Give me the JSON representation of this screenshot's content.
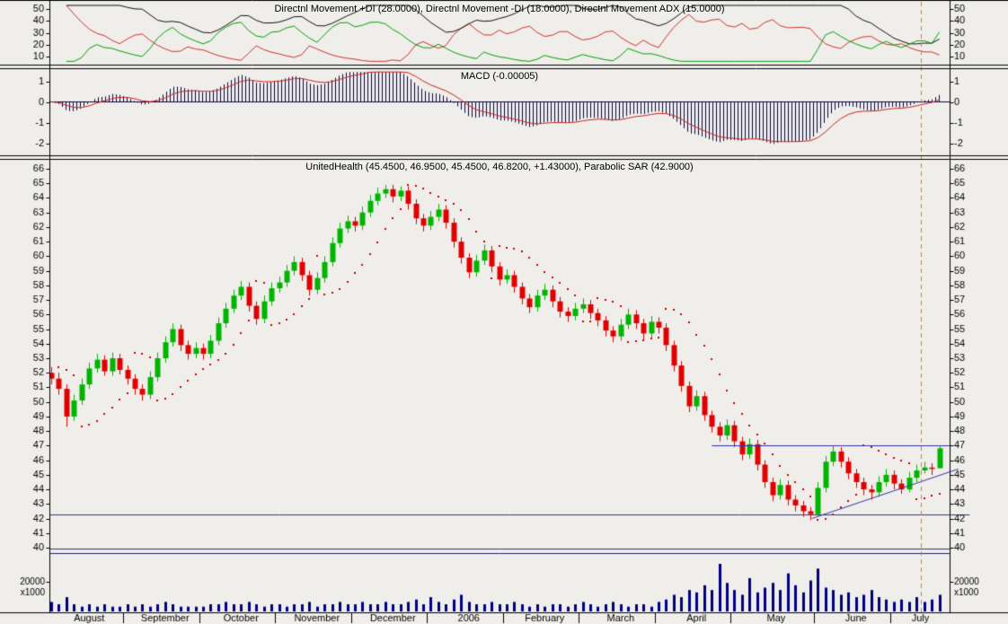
{
  "colors": {
    "background": "#efeeea",
    "frame": "#000000",
    "text": "#000000",
    "up_candle": "#00b400",
    "down_candle": "#e00000",
    "plus_di": "#00a000",
    "minus_di": "#d03030",
    "adx": "#101010",
    "macd_histogram": "#000080",
    "macd_zero_line": "#000080",
    "macd_signal": "#cc2222",
    "volume": "#000080",
    "sar": "#cc0000",
    "annotation_blue": "#3333aa",
    "cursor": "#c8823c"
  },
  "panels": {
    "dmi": {
      "title": "Directnl Movement +DI (28.0000), Directnl Movement -DI (18.0000), Directnl Movement ADX (15.0000)",
      "ticks": [
        50,
        40,
        30,
        20,
        10
      ]
    },
    "macd": {
      "title": "MACD (-0.00005)",
      "ticks": [
        1,
        0,
        -1,
        -2
      ]
    },
    "price": {
      "title": "UnitedHealth (45.4500, 46.9500, 45.4500, 46.8200, +1.43000), Parabolic SAR (42.9000)",
      "ticks": [
        66,
        65,
        64,
        63,
        62,
        61,
        60,
        59,
        58,
        57,
        56,
        55,
        54,
        53,
        52,
        51,
        50,
        49,
        48,
        47,
        46,
        45,
        44,
        43,
        42,
        41,
        40
      ]
    },
    "volume": {
      "scale_label": "20000",
      "unit_label": "x1000"
    }
  },
  "x_axis": {
    "labels": [
      "August",
      "September",
      "October",
      "November",
      "December",
      "2006",
      "February",
      "March",
      "April",
      "May",
      "June",
      "July"
    ],
    "month_start_indices": [
      0,
      10,
      20,
      30,
      40,
      50,
      60,
      70,
      80,
      90,
      101,
      111
    ]
  },
  "chart_data": {
    "type": "candlestick",
    "symbol": "UnitedHealth",
    "quote": {
      "open": 45.45,
      "high": 46.95,
      "low": 45.45,
      "close": 46.82,
      "change": 1.43
    },
    "price_axis_range": [
      40,
      66
    ],
    "candles": [
      [
        52.0,
        52.4,
        51.2,
        51.6
      ],
      [
        51.6,
        52.0,
        50.5,
        50.9
      ],
      [
        50.9,
        51.2,
        48.3,
        49.0
      ],
      [
        49.0,
        50.5,
        48.7,
        50.1
      ],
      [
        50.1,
        51.6,
        49.8,
        51.2
      ],
      [
        51.2,
        52.7,
        50.9,
        52.3
      ],
      [
        52.3,
        53.3,
        52.0,
        52.9
      ],
      [
        52.9,
        53.2,
        51.8,
        52.1
      ],
      [
        52.1,
        53.4,
        51.8,
        53.0
      ],
      [
        53.0,
        53.3,
        51.9,
        52.2
      ],
      [
        52.2,
        52.5,
        51.2,
        51.6
      ],
      [
        51.6,
        51.9,
        50.5,
        50.9
      ],
      [
        50.9,
        51.2,
        50.1,
        50.5
      ],
      [
        50.5,
        52.1,
        50.2,
        51.7
      ],
      [
        51.7,
        53.4,
        51.4,
        53.0
      ],
      [
        53.0,
        54.5,
        52.7,
        54.1
      ],
      [
        54.1,
        55.4,
        53.8,
        55.0
      ],
      [
        55.0,
        55.3,
        53.5,
        53.9
      ],
      [
        53.9,
        54.2,
        52.9,
        53.3
      ],
      [
        53.3,
        54.1,
        53.0,
        53.7
      ],
      [
        53.7,
        54.0,
        52.9,
        53.3
      ],
      [
        53.3,
        54.6,
        53.0,
        54.2
      ],
      [
        54.2,
        55.8,
        53.9,
        55.4
      ],
      [
        55.4,
        56.8,
        55.1,
        56.4
      ],
      [
        56.4,
        57.7,
        56.1,
        57.3
      ],
      [
        57.3,
        58.3,
        57.0,
        57.9
      ],
      [
        57.9,
        58.2,
        56.2,
        56.6
      ],
      [
        56.6,
        56.9,
        55.3,
        55.7
      ],
      [
        55.7,
        57.3,
        55.4,
        56.9
      ],
      [
        56.9,
        58.2,
        56.6,
        57.8
      ],
      [
        57.8,
        58.6,
        57.5,
        58.2
      ],
      [
        58.2,
        59.4,
        57.9,
        59.0
      ],
      [
        59.0,
        60.0,
        58.7,
        59.6
      ],
      [
        59.6,
        59.9,
        58.3,
        58.7
      ],
      [
        58.7,
        59.0,
        57.3,
        57.7
      ],
      [
        57.7,
        58.9,
        57.4,
        58.5
      ],
      [
        58.5,
        60.0,
        58.2,
        59.6
      ],
      [
        59.6,
        61.3,
        59.3,
        60.9
      ],
      [
        60.9,
        62.3,
        60.6,
        61.9
      ],
      [
        61.9,
        62.8,
        61.6,
        62.4
      ],
      [
        62.4,
        62.7,
        61.7,
        62.1
      ],
      [
        62.1,
        63.4,
        61.8,
        63.0
      ],
      [
        63.0,
        64.2,
        62.7,
        63.8
      ],
      [
        63.8,
        64.7,
        63.5,
        64.3
      ],
      [
        64.3,
        64.9,
        64.0,
        64.6
      ],
      [
        64.6,
        64.9,
        63.7,
        64.1
      ],
      [
        64.1,
        64.8,
        63.8,
        64.5
      ],
      [
        64.5,
        64.8,
        63.2,
        63.6
      ],
      [
        63.6,
        63.9,
        62.2,
        62.6
      ],
      [
        62.6,
        62.9,
        61.7,
        62.1
      ],
      [
        62.1,
        63.1,
        61.8,
        62.7
      ],
      [
        62.7,
        63.6,
        62.4,
        63.2
      ],
      [
        63.2,
        63.5,
        61.9,
        62.3
      ],
      [
        62.3,
        62.6,
        60.6,
        61.0
      ],
      [
        61.0,
        61.3,
        59.5,
        59.9
      ],
      [
        59.9,
        60.2,
        58.5,
        58.9
      ],
      [
        58.9,
        60.1,
        58.6,
        59.7
      ],
      [
        59.7,
        60.8,
        59.4,
        60.4
      ],
      [
        60.4,
        60.7,
        58.9,
        59.3
      ],
      [
        59.3,
        59.6,
        58.0,
        58.4
      ],
      [
        58.4,
        59.1,
        58.1,
        58.7
      ],
      [
        58.7,
        59.0,
        57.5,
        57.9
      ],
      [
        57.9,
        58.2,
        56.7,
        57.1
      ],
      [
        57.1,
        57.4,
        56.1,
        56.5
      ],
      [
        56.5,
        57.7,
        56.2,
        57.3
      ],
      [
        57.3,
        58.1,
        57.0,
        57.7
      ],
      [
        57.7,
        58.0,
        56.5,
        56.9
      ],
      [
        56.9,
        57.2,
        55.8,
        56.2
      ],
      [
        56.2,
        56.5,
        55.5,
        55.9
      ],
      [
        55.9,
        56.8,
        55.6,
        56.4
      ],
      [
        56.4,
        57.1,
        56.1,
        56.7
      ],
      [
        56.7,
        57.0,
        55.7,
        56.1
      ],
      [
        56.1,
        56.4,
        55.2,
        55.6
      ],
      [
        55.6,
        55.9,
        54.5,
        54.9
      ],
      [
        54.9,
        55.2,
        54.1,
        54.5
      ],
      [
        54.5,
        55.7,
        54.2,
        55.3
      ],
      [
        55.3,
        56.4,
        55.0,
        56.0
      ],
      [
        56.0,
        56.3,
        55.0,
        55.4
      ],
      [
        55.4,
        55.7,
        54.3,
        54.7
      ],
      [
        54.7,
        55.9,
        54.4,
        55.5
      ],
      [
        55.5,
        55.8,
        54.7,
        55.1
      ],
      [
        55.1,
        55.4,
        53.5,
        53.9
      ],
      [
        53.9,
        54.2,
        52.1,
        52.5
      ],
      [
        52.5,
        52.8,
        50.7,
        51.1
      ],
      [
        51.1,
        51.4,
        49.3,
        49.7
      ],
      [
        49.7,
        50.8,
        49.4,
        50.4
      ],
      [
        50.4,
        50.7,
        48.7,
        49.1
      ],
      [
        49.1,
        49.4,
        47.9,
        48.3
      ],
      [
        48.3,
        48.6,
        47.3,
        47.7
      ],
      [
        47.7,
        48.8,
        47.4,
        48.4
      ],
      [
        48.4,
        48.7,
        46.9,
        47.3
      ],
      [
        47.3,
        47.6,
        46.0,
        46.4
      ],
      [
        46.4,
        47.5,
        46.1,
        47.1
      ],
      [
        47.1,
        47.4,
        45.3,
        45.7
      ],
      [
        45.7,
        46.0,
        44.1,
        44.5
      ],
      [
        44.5,
        44.8,
        43.2,
        43.6
      ],
      [
        43.6,
        44.7,
        43.3,
        44.3
      ],
      [
        44.3,
        44.6,
        42.9,
        43.3
      ],
      [
        43.3,
        43.6,
        42.5,
        42.9
      ],
      [
        42.9,
        43.2,
        42.1,
        42.5
      ],
      [
        42.5,
        42.8,
        41.9,
        42.3
      ],
      [
        42.3,
        44.5,
        42.2,
        44.1
      ],
      [
        44.1,
        46.3,
        43.8,
        45.9
      ],
      [
        45.9,
        47.0,
        45.6,
        46.6
      ],
      [
        46.6,
        46.9,
        45.5,
        45.9
      ],
      [
        45.9,
        46.2,
        44.7,
        45.1
      ],
      [
        45.1,
        45.4,
        44.1,
        44.5
      ],
      [
        44.5,
        44.8,
        43.6,
        44.0
      ],
      [
        44.0,
        44.3,
        43.3,
        43.8
      ],
      [
        43.8,
        44.9,
        43.5,
        44.5
      ],
      [
        44.5,
        45.4,
        44.2,
        45.0
      ],
      [
        45.0,
        45.3,
        44.0,
        44.4
      ],
      [
        44.4,
        44.7,
        43.7,
        44.0
      ],
      [
        44.0,
        45.2,
        43.8,
        44.8
      ],
      [
        44.8,
        45.7,
        44.5,
        45.3
      ],
      [
        45.3,
        45.9,
        45.1,
        45.5
      ],
      [
        45.5,
        45.8,
        45.0,
        45.4
      ],
      [
        45.45,
        46.95,
        45.45,
        46.82
      ]
    ],
    "volumes_x1000": [
      4,
      3,
      6,
      3,
      2,
      3,
      2,
      3,
      2,
      2,
      3,
      2,
      3,
      2,
      3,
      4,
      3,
      2,
      2,
      2,
      2,
      3,
      3,
      4,
      3,
      3,
      4,
      3,
      2,
      3,
      3,
      2,
      3,
      3,
      4,
      2,
      3,
      3,
      4,
      3,
      3,
      4,
      3,
      3,
      4,
      3,
      3,
      4,
      5,
      3,
      6,
      4,
      3,
      5,
      7,
      4,
      3,
      3,
      4,
      3,
      3,
      4,
      3,
      2,
      3,
      2,
      3,
      3,
      2,
      3,
      4,
      3,
      2,
      3,
      4,
      3,
      2,
      3,
      3,
      2,
      4,
      5,
      7,
      6,
      9,
      8,
      11,
      9,
      20,
      12,
      9,
      7,
      14,
      8,
      10,
      12,
      9,
      16,
      11,
      8,
      13,
      18,
      10,
      9,
      7,
      8,
      6,
      7,
      9,
      6,
      5,
      4,
      5,
      4,
      6,
      4,
      5,
      7
    ],
    "indicators": {
      "dmi": {
        "period": 7,
        "display_plus_di": 28.0,
        "display_minus_di": 18.0,
        "display_adx": 15.0
      },
      "macd": {
        "fast": 6,
        "slow": 13,
        "signal_period": 5,
        "display_value": -5e-05
      },
      "parabolic_sar": {
        "step": 0.035,
        "max": 0.25,
        "display_value": 42.9
      }
    },
    "annotations": {
      "hlines": [
        {
          "value": 47.05,
          "from_index": 87.0,
          "to_index": 118.4,
          "color": "#3333aa"
        },
        {
          "value": 42.25,
          "from_index": -0.2,
          "to_index": 121.0,
          "color": "#3333aa"
        },
        {
          "value": 39.95,
          "from_index": -0.2,
          "to_index": 118.4,
          "color": "#333388"
        },
        {
          "value": 39.6,
          "from_index": -0.2,
          "to_index": 118.4,
          "color": "#222266"
        }
      ],
      "trendline": {
        "from_index": 100.2,
        "from_value": 42.0,
        "to_index": 119.5,
        "to_value": 45.4,
        "color": "#3333aa"
      },
      "cursor_vline": {
        "at_index": 114.6,
        "color": "#c8823c"
      }
    },
    "volume_axis_max_x1000": 20
  }
}
